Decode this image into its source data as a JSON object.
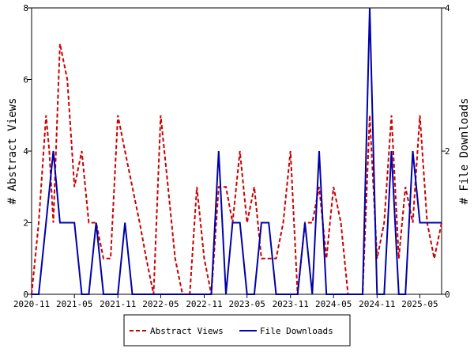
{
  "chart_data": {
    "type": "line",
    "title": "",
    "x_ticks": [
      "2020-11",
      "2021-05",
      "2021-11",
      "2022-05",
      "2022-11",
      "2023-05",
      "2023-11",
      "2024-05",
      "2024-11",
      "2025-05"
    ],
    "ylabel_left": "# Abstract Views",
    "ylabel_right": "# File Downloads",
    "ylim_left": [
      0,
      8
    ],
    "yticks_left": [
      "0",
      "2",
      "4",
      "6",
      "8"
    ],
    "ylim_right": [
      0,
      4
    ],
    "yticks_right": [
      "0",
      "2",
      "4"
    ],
    "grid": false,
    "legend_position": "bottom",
    "series": [
      {
        "name": "Abstract Views",
        "axis": "left",
        "color": "#cc0000",
        "style": "dashed",
        "points": [
          [
            "2020-11-01",
            0
          ],
          [
            "2020-12-01",
            2
          ],
          [
            "2021-01-01",
            5
          ],
          [
            "2021-01-15",
            4
          ],
          [
            "2021-02-01",
            2
          ],
          [
            "2021-03-01",
            7
          ],
          [
            "2021-04-01",
            6
          ],
          [
            "2021-05-01",
            3
          ],
          [
            "2021-06-01",
            4
          ],
          [
            "2021-07-01",
            2
          ],
          [
            "2021-08-01",
            2
          ],
          [
            "2021-09-01",
            1
          ],
          [
            "2021-10-01",
            1
          ],
          [
            "2021-11-01",
            5
          ],
          [
            "2021-12-01",
            4
          ],
          [
            "2022-01-01",
            3
          ],
          [
            "2022-02-01",
            2
          ],
          [
            "2022-03-01",
            1
          ],
          [
            "2022-04-01",
            0
          ],
          [
            "2022-05-01",
            5
          ],
          [
            "2022-06-01",
            3
          ],
          [
            "2022-07-01",
            1
          ],
          [
            "2022-08-01",
            0
          ],
          [
            "2022-09-01",
            0
          ],
          [
            "2022-10-01",
            3
          ],
          [
            "2022-11-01",
            1
          ],
          [
            "2022-12-01",
            0
          ],
          [
            "2023-01-01",
            3
          ],
          [
            "2023-02-01",
            3
          ],
          [
            "2023-03-01",
            2
          ],
          [
            "2023-04-01",
            4
          ],
          [
            "2023-05-01",
            2
          ],
          [
            "2023-06-01",
            3
          ],
          [
            "2023-07-01",
            1
          ],
          [
            "2023-08-01",
            1
          ],
          [
            "2023-09-01",
            1
          ],
          [
            "2023-10-01",
            2
          ],
          [
            "2023-11-01",
            4
          ],
          [
            "2023-12-01",
            0
          ],
          [
            "2024-01-01",
            2
          ],
          [
            "2024-02-01",
            2
          ],
          [
            "2024-03-01",
            3
          ],
          [
            "2024-04-01",
            1
          ],
          [
            "2024-05-01",
            3
          ],
          [
            "2024-06-01",
            2
          ],
          [
            "2024-07-01",
            0
          ],
          [
            "2024-08-01",
            0
          ],
          [
            "2024-09-01",
            0
          ],
          [
            "2024-10-01",
            5
          ],
          [
            "2024-11-01",
            1
          ],
          [
            "2024-12-01",
            2
          ],
          [
            "2025-01-01",
            5
          ],
          [
            "2025-02-01",
            1
          ],
          [
            "2025-03-01",
            3
          ],
          [
            "2025-04-01",
            2
          ],
          [
            "2025-05-01",
            5
          ],
          [
            "2025-06-01",
            2
          ],
          [
            "2025-07-01",
            1
          ],
          [
            "2025-08-01",
            2
          ]
        ]
      },
      {
        "name": "File Downloads",
        "axis": "right",
        "color": "#0000aa",
        "style": "solid",
        "points": [
          [
            "2020-11-01",
            0
          ],
          [
            "2020-12-01",
            0
          ],
          [
            "2021-01-01",
            1
          ],
          [
            "2021-02-01",
            2
          ],
          [
            "2021-03-01",
            1
          ],
          [
            "2021-04-01",
            1
          ],
          [
            "2021-05-01",
            1
          ],
          [
            "2021-06-01",
            0
          ],
          [
            "2021-07-01",
            0
          ],
          [
            "2021-08-01",
            1
          ],
          [
            "2021-09-01",
            0
          ],
          [
            "2021-10-01",
            0
          ],
          [
            "2021-11-01",
            0
          ],
          [
            "2021-12-01",
            1
          ],
          [
            "2022-01-01",
            0
          ],
          [
            "2022-02-01",
            0
          ],
          [
            "2022-03-01",
            0
          ],
          [
            "2022-04-01",
            0
          ],
          [
            "2022-05-01",
            0
          ],
          [
            "2022-06-01",
            0
          ],
          [
            "2022-07-01",
            0
          ],
          [
            "2022-08-01",
            0
          ],
          [
            "2022-09-01",
            0
          ],
          [
            "2022-10-01",
            0
          ],
          [
            "2022-11-01",
            0
          ],
          [
            "2022-12-01",
            0
          ],
          [
            "2023-01-01",
            2
          ],
          [
            "2023-02-01",
            0
          ],
          [
            "2023-03-01",
            1
          ],
          [
            "2023-04-01",
            1
          ],
          [
            "2023-05-01",
            0
          ],
          [
            "2023-06-01",
            0
          ],
          [
            "2023-07-01",
            1
          ],
          [
            "2023-08-01",
            1
          ],
          [
            "2023-09-01",
            0
          ],
          [
            "2023-10-01",
            0
          ],
          [
            "2023-11-01",
            0
          ],
          [
            "2023-12-01",
            0
          ],
          [
            "2024-01-01",
            1
          ],
          [
            "2024-02-01",
            0
          ],
          [
            "2024-03-01",
            2
          ],
          [
            "2024-04-01",
            0
          ],
          [
            "2024-05-01",
            0
          ],
          [
            "2024-06-01",
            0
          ],
          [
            "2024-07-01",
            0
          ],
          [
            "2024-08-01",
            0
          ],
          [
            "2024-09-01",
            0
          ],
          [
            "2024-10-01",
            4
          ],
          [
            "2024-11-01",
            0
          ],
          [
            "2024-12-01",
            0
          ],
          [
            "2025-01-01",
            2
          ],
          [
            "2025-02-01",
            0
          ],
          [
            "2025-03-01",
            0
          ],
          [
            "2025-04-01",
            2
          ],
          [
            "2025-05-01",
            1
          ],
          [
            "2025-06-01",
            1
          ],
          [
            "2025-07-01",
            1
          ],
          [
            "2025-08-01",
            1
          ]
        ]
      }
    ]
  }
}
